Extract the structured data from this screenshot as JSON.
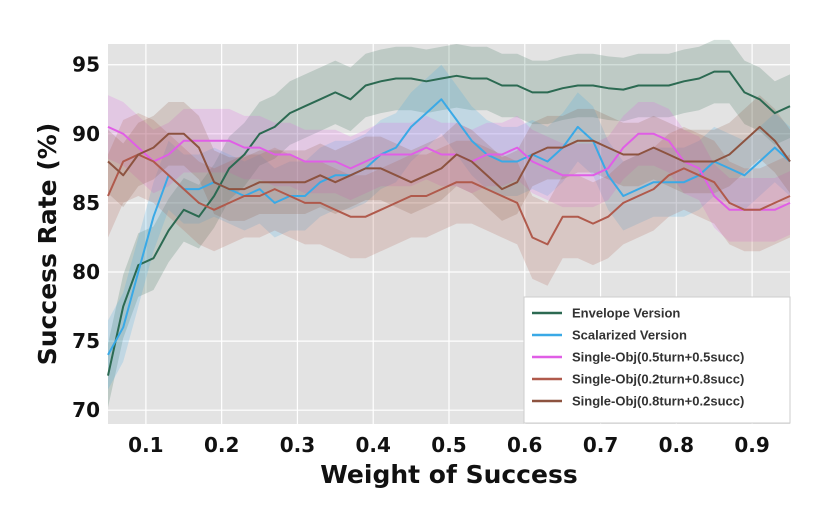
{
  "chart_data": {
    "type": "line",
    "title": "",
    "xlabel": "Weight of Success",
    "ylabel": "Success Rate (%)",
    "xlim": [
      0.05,
      0.95
    ],
    "ylim": [
      69,
      96.5
    ],
    "xticks": [
      0.1,
      0.2,
      0.3,
      0.4,
      0.5,
      0.6,
      0.7,
      0.8,
      0.9
    ],
    "xtick_labels": [
      "0.1",
      "0.2",
      "0.3",
      "0.4",
      "0.5",
      "0.6",
      "0.7",
      "0.8",
      "0.9"
    ],
    "yticks": [
      70,
      75,
      80,
      85,
      90,
      95
    ],
    "ytick_labels": [
      "70",
      "75",
      "80",
      "85",
      "90",
      "95"
    ],
    "grid": true,
    "legend_position": "bottom-right",
    "series": [
      {
        "name": "Envelope Version",
        "color": "#2c6a52",
        "band": 2.3,
        "x": [
          0.05,
          0.07,
          0.09,
          0.11,
          0.13,
          0.15,
          0.17,
          0.19,
          0.21,
          0.23,
          0.25,
          0.27,
          0.29,
          0.31,
          0.33,
          0.35,
          0.37,
          0.39,
          0.41,
          0.43,
          0.45,
          0.47,
          0.49,
          0.51,
          0.53,
          0.55,
          0.57,
          0.59,
          0.61,
          0.63,
          0.65,
          0.67,
          0.69,
          0.71,
          0.73,
          0.75,
          0.77,
          0.79,
          0.81,
          0.83,
          0.85,
          0.87,
          0.89,
          0.91,
          0.93,
          0.95
        ],
        "y": [
          72.5,
          77.5,
          80.5,
          81,
          83,
          84.5,
          84,
          85.5,
          87.5,
          88.5,
          90,
          90.5,
          91.5,
          92,
          92.5,
          93,
          92.5,
          93.5,
          93.8,
          94,
          94,
          93.8,
          94,
          94.2,
          94,
          94,
          93.5,
          93.5,
          93,
          93,
          93.3,
          93.5,
          93.5,
          93.3,
          93.2,
          93.5,
          93.5,
          93.5,
          93.8,
          94,
          94.5,
          94.5,
          93,
          92.5,
          91.5,
          92
        ]
      },
      {
        "name": "Scalarized Version",
        "color": "#3aa9e6",
        "band": 2.5,
        "x": [
          0.05,
          0.07,
          0.09,
          0.11,
          0.13,
          0.15,
          0.17,
          0.19,
          0.21,
          0.23,
          0.25,
          0.27,
          0.29,
          0.31,
          0.33,
          0.35,
          0.37,
          0.39,
          0.41,
          0.43,
          0.45,
          0.47,
          0.49,
          0.51,
          0.53,
          0.55,
          0.57,
          0.59,
          0.61,
          0.63,
          0.65,
          0.67,
          0.69,
          0.71,
          0.73,
          0.75,
          0.77,
          0.79,
          0.81,
          0.83,
          0.85,
          0.87,
          0.89,
          0.91,
          0.93,
          0.95
        ],
        "y": [
          74,
          76,
          80,
          84,
          87,
          86,
          86,
          86.5,
          86,
          85.5,
          86,
          85,
          85.5,
          85.5,
          86.5,
          87,
          87,
          87.5,
          88.5,
          89,
          90.5,
          91.5,
          92.5,
          91,
          89.5,
          88.5,
          88,
          88,
          88.5,
          88,
          89,
          90.5,
          89.5,
          87,
          85.5,
          86,
          86.5,
          86.5,
          86.5,
          87,
          88,
          87.5,
          87,
          88,
          89,
          88
        ]
      },
      {
        "name": "Single-Obj(0.5turn+0.5succ)",
        "color": "#e05ee6",
        "band": 2.3,
        "x": [
          0.05,
          0.07,
          0.09,
          0.11,
          0.13,
          0.15,
          0.17,
          0.19,
          0.21,
          0.23,
          0.25,
          0.27,
          0.29,
          0.31,
          0.33,
          0.35,
          0.37,
          0.39,
          0.41,
          0.43,
          0.45,
          0.47,
          0.49,
          0.51,
          0.53,
          0.55,
          0.57,
          0.59,
          0.61,
          0.63,
          0.65,
          0.67,
          0.69,
          0.71,
          0.73,
          0.75,
          0.77,
          0.79,
          0.81,
          0.83,
          0.85,
          0.87,
          0.89,
          0.91,
          0.93,
          0.95
        ],
        "y": [
          90.5,
          90,
          89,
          88,
          88.5,
          89.5,
          89.5,
          89.5,
          89.5,
          89,
          89,
          88.5,
          88.5,
          88,
          88,
          88,
          87.5,
          88,
          88.5,
          88.5,
          88.5,
          89,
          88.5,
          88.5,
          88,
          88.5,
          88.5,
          89,
          88,
          87.5,
          87,
          87,
          87,
          87.5,
          89,
          90,
          90,
          89.5,
          88,
          87.5,
          85.5,
          84.5,
          84.5,
          84.5,
          84.5,
          85
        ]
      },
      {
        "name": "Single-Obj(0.2turn+0.8succ)",
        "color": "#b05a4c",
        "band": 3.0,
        "x": [
          0.05,
          0.07,
          0.09,
          0.11,
          0.13,
          0.15,
          0.17,
          0.19,
          0.21,
          0.23,
          0.25,
          0.27,
          0.29,
          0.31,
          0.33,
          0.35,
          0.37,
          0.39,
          0.41,
          0.43,
          0.45,
          0.47,
          0.49,
          0.51,
          0.53,
          0.55,
          0.57,
          0.59,
          0.61,
          0.63,
          0.65,
          0.67,
          0.69,
          0.71,
          0.73,
          0.75,
          0.77,
          0.79,
          0.81,
          0.83,
          0.85,
          0.87,
          0.89,
          0.91,
          0.93,
          0.95
        ],
        "y": [
          85.5,
          88,
          88.5,
          88,
          87,
          86,
          85,
          84.5,
          85,
          85.5,
          85.5,
          86,
          85.5,
          85,
          85,
          84.5,
          84,
          84,
          84.5,
          85,
          85.5,
          85.5,
          86,
          86.5,
          86.5,
          86,
          85.5,
          85,
          82.5,
          82,
          84,
          84,
          83.5,
          84,
          85,
          85.5,
          86,
          87,
          87.5,
          87,
          86.5,
          85,
          84.5,
          84.5,
          85,
          85.5
        ]
      },
      {
        "name": "Single-Obj(0.8turn+0.2succ)",
        "color": "#8d5340",
        "band": 2.3,
        "x": [
          0.05,
          0.07,
          0.09,
          0.11,
          0.13,
          0.15,
          0.17,
          0.19,
          0.21,
          0.23,
          0.25,
          0.27,
          0.29,
          0.31,
          0.33,
          0.35,
          0.37,
          0.39,
          0.41,
          0.43,
          0.45,
          0.47,
          0.49,
          0.51,
          0.53,
          0.55,
          0.57,
          0.59,
          0.61,
          0.63,
          0.65,
          0.67,
          0.69,
          0.71,
          0.73,
          0.75,
          0.77,
          0.79,
          0.81,
          0.83,
          0.85,
          0.87,
          0.89,
          0.91,
          0.93,
          0.95
        ],
        "y": [
          88,
          87,
          88.5,
          89,
          90,
          90,
          89,
          86.5,
          86,
          86,
          86.5,
          86.5,
          86.5,
          86.5,
          87,
          86.5,
          87,
          87.5,
          87.5,
          87,
          86.5,
          87,
          87.5,
          88.5,
          88,
          87,
          86,
          86.5,
          88.5,
          89,
          89,
          89.5,
          89.5,
          89,
          88.5,
          88.5,
          89,
          88.5,
          88,
          88,
          88,
          88.5,
          89.5,
          90.5,
          89.5,
          88
        ]
      }
    ]
  }
}
